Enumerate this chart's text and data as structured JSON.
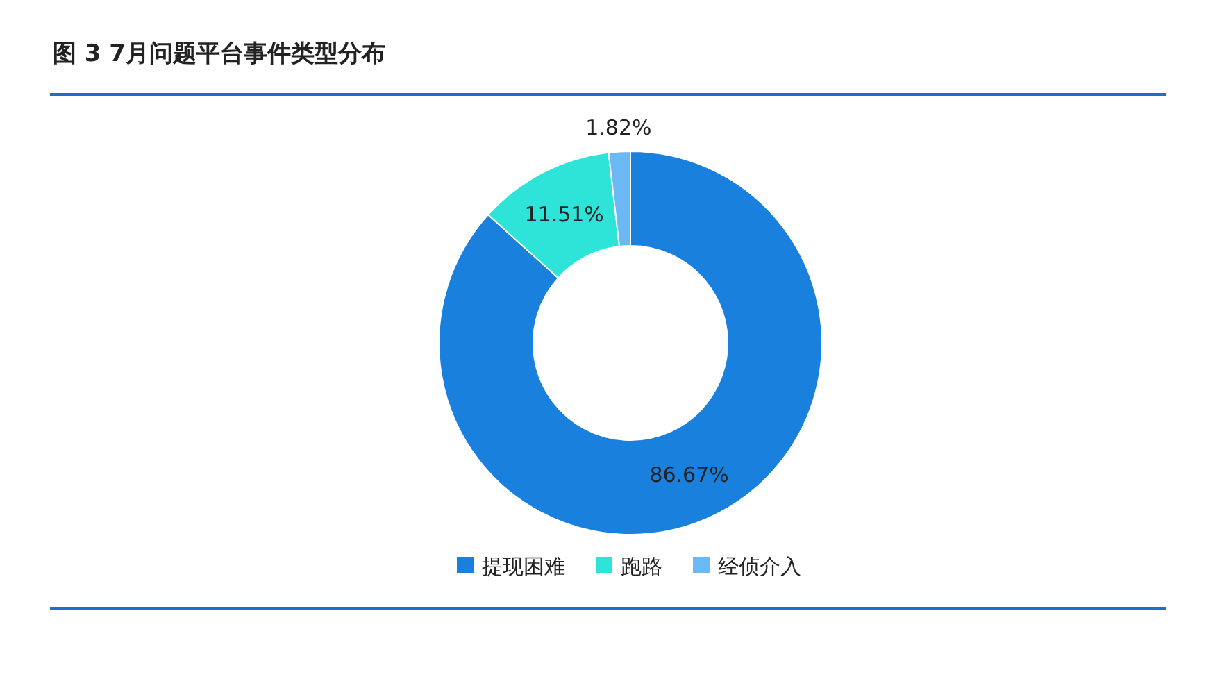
{
  "chart_data": {
    "type": "donut",
    "title": "图 3 7月问题平台事件类型分布",
    "categories": [
      "提现困难",
      "跑路",
      "经侦介入"
    ],
    "values": [
      86.67,
      11.51,
      1.82
    ],
    "colors": [
      "#1a80de",
      "#2ee3d8",
      "#6ab8f4"
    ],
    "value_labels": [
      "86.67%",
      "11.51%",
      "1.82%"
    ],
    "legend": "bottom"
  }
}
